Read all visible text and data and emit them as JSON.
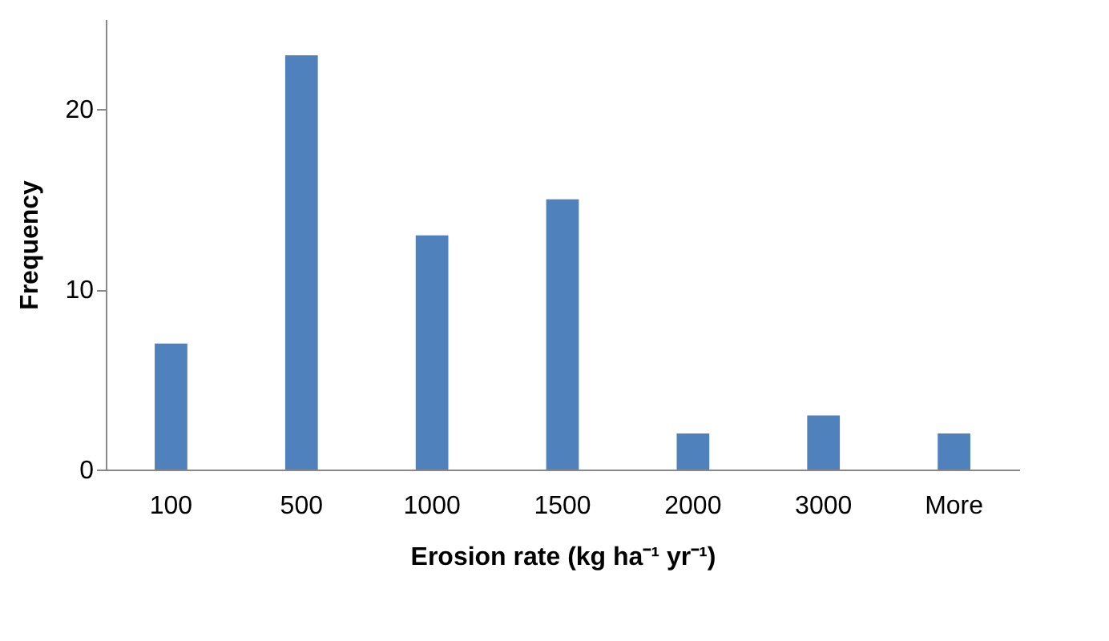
{
  "chart_data": {
    "type": "bar",
    "xlabel": "Erosion rate (kg ha⁻¹ yr⁻¹)",
    "ylabel": "Frequency",
    "categories": [
      "100",
      "500",
      "1000",
      "1500",
      "2000",
      "3000",
      "More"
    ],
    "values": [
      7,
      23,
      13,
      15,
      2,
      3,
      2
    ],
    "color": "#4f81bd",
    "ylim": [
      0,
      25
    ],
    "yticks": [
      0,
      10,
      20
    ]
  }
}
